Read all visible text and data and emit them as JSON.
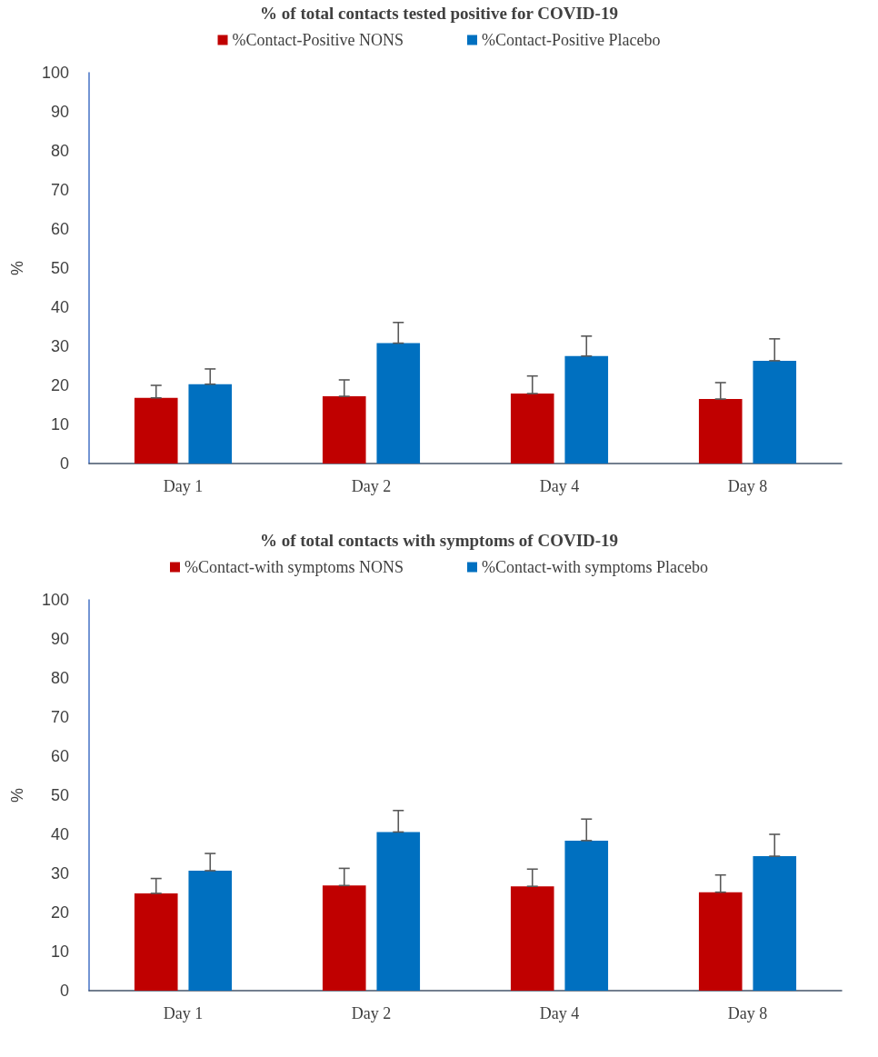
{
  "chart_data": [
    {
      "type": "bar",
      "title": "% of total contacts tested positive for COVID-19",
      "ylabel": "%",
      "categories": [
        "Day 1",
        "Day 2",
        "Day 4",
        "Day 8"
      ],
      "ylim": [
        0,
        100
      ],
      "yticks": [
        0,
        10,
        20,
        30,
        40,
        50,
        60,
        70,
        80,
        90,
        100
      ],
      "grid": false,
      "legend": "top",
      "series": [
        {
          "name": "%Contact-Positive NONS",
          "color": "#c00000",
          "values": [
            16.8,
            17.2,
            17.9,
            16.5
          ],
          "errors": [
            [
              16.8,
              20.0
            ],
            [
              17.2,
              21.4
            ],
            [
              17.9,
              22.4
            ],
            [
              16.5,
              20.7
            ]
          ]
        },
        {
          "name": "%Contact-Positive Placebo",
          "color": "#0070c0",
          "values": [
            20.3,
            30.8,
            27.5,
            26.3
          ],
          "errors": [
            [
              20.3,
              24.2
            ],
            [
              30.8,
              36.1
            ],
            [
              27.5,
              32.6
            ],
            [
              26.3,
              31.9
            ]
          ]
        }
      ]
    },
    {
      "type": "bar",
      "title": "% of total contacts with symptoms of COVID-19",
      "ylabel": "%",
      "categories": [
        "Day 1",
        "Day 2",
        "Day 4",
        "Day 8"
      ],
      "ylim": [
        0,
        100
      ],
      "yticks": [
        0,
        10,
        20,
        30,
        40,
        50,
        60,
        70,
        80,
        90,
        100
      ],
      "grid": false,
      "legend": "top",
      "series": [
        {
          "name": "%Contact-with symptoms NONS",
          "color": "#c00000",
          "values": [
            24.9,
            26.9,
            26.7,
            25.2
          ],
          "errors": [
            [
              24.9,
              28.7
            ],
            [
              26.9,
              31.3
            ],
            [
              26.7,
              31.1
            ],
            [
              25.2,
              29.6
            ]
          ]
        },
        {
          "name": "%Contact-with symptoms Placebo",
          "color": "#0070c0",
          "values": [
            30.7,
            40.6,
            38.4,
            34.4
          ],
          "errors": [
            [
              30.7,
              35.1
            ],
            [
              40.6,
              46.1
            ],
            [
              38.4,
              43.9
            ],
            [
              34.4,
              40.0
            ]
          ]
        }
      ]
    }
  ]
}
